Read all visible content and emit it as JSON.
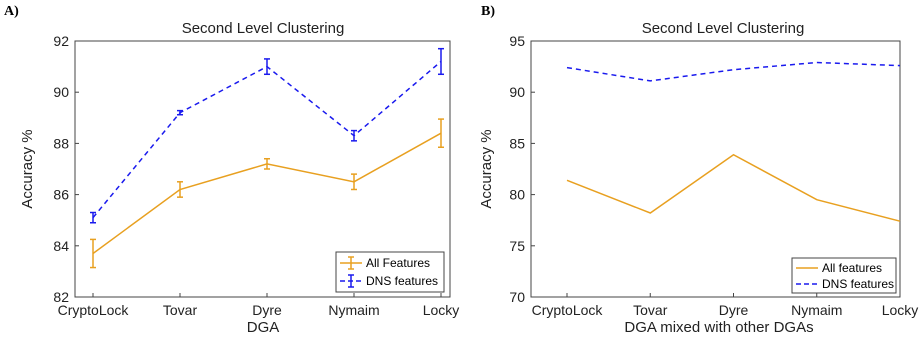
{
  "chart_data": [
    {
      "type": "line",
      "panel_label": "A)",
      "title": "Second Level Clustering",
      "xlabel": "DGA",
      "ylabel": "Accuracy %",
      "categories": [
        "CryptoLock",
        "Tovar",
        "Dyre",
        "Nymaim",
        "Locky"
      ],
      "ylim": [
        82,
        92
      ],
      "yticks": [
        "82",
        "84",
        "86",
        "88",
        "90",
        "92"
      ],
      "series": [
        {
          "name": "All Features",
          "color": "#e8a020",
          "style": "solid",
          "values": [
            83.7,
            86.2,
            87.2,
            86.5,
            88.4
          ],
          "errors": [
            0.55,
            0.3,
            0.2,
            0.3,
            0.55
          ]
        },
        {
          "name": "DNS features",
          "color": "#1a1aee",
          "style": "dashed",
          "values": [
            85.1,
            89.2,
            91.0,
            88.3,
            91.2
          ],
          "errors": [
            0.2,
            0.08,
            0.3,
            0.2,
            0.5
          ]
        }
      ],
      "legend_position": "bottom-right"
    },
    {
      "type": "line",
      "panel_label": "B)",
      "title": "Second Level Clustering",
      "xlabel": "DGA mixed with other DGAs",
      "ylabel": "Accuracy %",
      "categories": [
        "CryptoLock",
        "Tovar",
        "Dyre",
        "Nymaim",
        "Locky"
      ],
      "ylim": [
        70,
        95
      ],
      "yticks": [
        "70",
        "75",
        "80",
        "85",
        "90",
        "95"
      ],
      "series": [
        {
          "name": "All features",
          "color": "#e8a020",
          "style": "solid",
          "values": [
            81.4,
            78.2,
            83.9,
            79.5,
            77.4
          ]
        },
        {
          "name": "DNS features",
          "color": "#1a1aee",
          "style": "dashed",
          "values": [
            92.4,
            91.1,
            92.2,
            92.9,
            92.6
          ]
        }
      ],
      "legend_position": "bottom-right"
    }
  ]
}
